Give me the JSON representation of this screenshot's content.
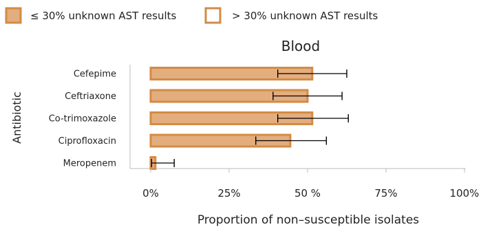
{
  "chart_data": {
    "type": "bar",
    "orientation": "horizontal",
    "title": "Blood",
    "xlabel": "Proportion of non–susceptible isolates",
    "ylabel": "Antibiotic",
    "categories": [
      "Cefepime",
      "Ceftriaxone",
      "Co-trimoxazole",
      "Ciprofloxacin",
      "Meropenem"
    ],
    "series": [
      {
        "name": "≤ 30% unknown AST results",
        "values": [
          51.5,
          50.0,
          51.5,
          44.5,
          1.5
        ],
        "error_low": [
          40.5,
          39.0,
          40.5,
          33.5,
          0.3
        ],
        "error_high": [
          62.5,
          61.0,
          63.0,
          56.0,
          7.5
        ]
      }
    ],
    "legend": [
      {
        "label": "≤ 30% unknown AST results",
        "style": "filled"
      },
      {
        "label": "> 30% unknown AST results",
        "style": "outline"
      }
    ],
    "legend_position": "top-left",
    "xticks": [
      "0%",
      "25%",
      "50 %",
      "75%",
      "100%"
    ],
    "xlim": [
      0,
      100
    ],
    "grid": false,
    "colors": {
      "bar_fill": "#e3ad7e",
      "bar_border": "#d38b45",
      "error_bar": "#000000",
      "axis": "#bbbbbb",
      "text": "#222222"
    }
  }
}
